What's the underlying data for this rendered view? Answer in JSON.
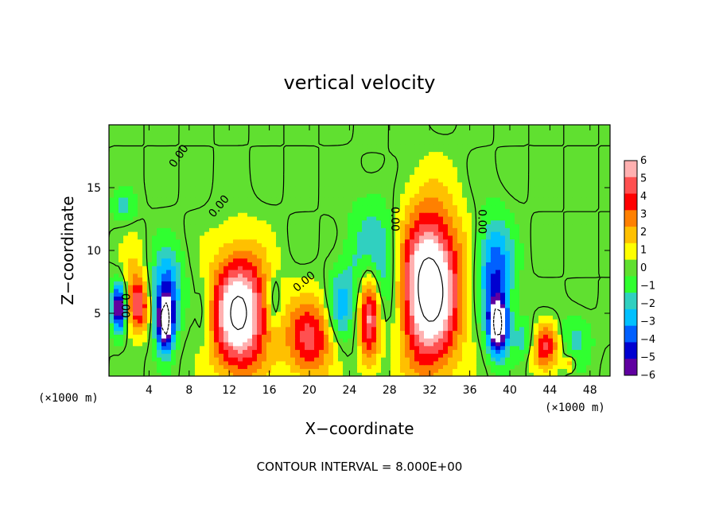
{
  "chart_data": {
    "type": "heatmap",
    "title": "vertical velocity",
    "xlabel": "X−coordinate",
    "ylabel": "Z−coordinate",
    "x_unit_label_left": "(×1000 m)",
    "x_unit_label_right": "(×1000 m)",
    "xlim": [
      0,
      50
    ],
    "ylim": [
      0,
      20
    ],
    "x_ticks": [
      4,
      8,
      12,
      16,
      20,
      24,
      28,
      32,
      36,
      40,
      44,
      48
    ],
    "x_tick_labels": [
      "4",
      "8",
      "12",
      "16",
      "20",
      "24",
      "28",
      "32",
      "36",
      "40",
      "44",
      "48"
    ],
    "y_ticks": [
      5,
      10,
      15
    ],
    "y_tick_labels": [
      "5",
      "10",
      "15"
    ],
    "colorbar": {
      "levels": [
        6,
        5,
        4,
        3,
        2,
        1,
        0,
        -1,
        -2,
        -3,
        -4,
        -5,
        -6
      ],
      "labels": [
        "6",
        "5",
        "4",
        "3",
        "2",
        "1",
        "0",
        "−1",
        "−2",
        "−3",
        "−4",
        "−5",
        "−6"
      ],
      "colors": [
        "#ffb0b0",
        "#ff5050",
        "#ff0000",
        "#ff8000",
        "#ffc000",
        "#ffff00",
        "#60e030",
        "#30ff30",
        "#30d0c0",
        "#00c0ff",
        "#0060ff",
        "#0000d0",
        "#6000a0"
      ]
    },
    "zero_contour_label": "0.00",
    "contour_labels": [
      {
        "text": "0.00",
        "x": 7.0,
        "z": 17.5,
        "rotate": -55
      },
      {
        "text": "0.00",
        "x": 11.0,
        "z": 13.5,
        "rotate": -50
      },
      {
        "text": "0.00",
        "x": 1.6,
        "z": 5.6,
        "rotate": 90
      },
      {
        "text": "0.00",
        "x": 19.5,
        "z": 7.5,
        "rotate": -40
      },
      {
        "text": "0.00",
        "x": 28.5,
        "z": 12.5,
        "rotate": 90
      },
      {
        "text": "0.00",
        "x": 37.2,
        "z": 12.3,
        "rotate": 90
      }
    ],
    "cells": [
      {
        "x": 13.0,
        "z": 5.0,
        "rx": 3.6,
        "rz": 6.0,
        "w": 8.5
      },
      {
        "x": 32.0,
        "z": 7.0,
        "rx": 3.8,
        "rz": 7.8,
        "w": 9.5
      },
      {
        "x": 26.0,
        "z": 5.0,
        "rx": 1.4,
        "rz": 5.0,
        "w": 8.0
      },
      {
        "x": 20.0,
        "z": 3.0,
        "rx": 3.0,
        "rz": 4.0,
        "w": 5.0
      },
      {
        "x": 43.5,
        "z": 2.5,
        "rx": 1.8,
        "rz": 2.3,
        "w": 5.0
      },
      {
        "x": 3.0,
        "z": 5.5,
        "rx": 1.2,
        "rz": 2.5,
        "w": 5.0
      },
      {
        "x": 2.5,
        "z": 7.5,
        "rx": 1.5,
        "rz": 4.0,
        "w": 2.0
      },
      {
        "x": 5.6,
        "z": 4.2,
        "rx": 1.0,
        "rz": 2.8,
        "w": -8.5
      },
      {
        "x": 5.8,
        "z": 7.0,
        "rx": 2.0,
        "rz": 4.0,
        "w": -4.0
      },
      {
        "x": 1.0,
        "z": 5.5,
        "rx": 0.8,
        "rz": 2.4,
        "w": -8.0
      },
      {
        "x": 38.8,
        "z": 4.0,
        "rx": 1.2,
        "rz": 3.0,
        "w": -8.5
      },
      {
        "x": 38.5,
        "z": 8.5,
        "rx": 2.2,
        "rz": 5.0,
        "w": -4.5
      },
      {
        "x": 26.5,
        "z": 8.0,
        "rx": 3.0,
        "rz": 6.5,
        "w": -4.0
      },
      {
        "x": 23.0,
        "z": 5.5,
        "rx": 1.5,
        "rz": 3.5,
        "w": -3.0
      },
      {
        "x": 41.5,
        "z": 3.0,
        "rx": 1.5,
        "rz": 2.0,
        "w": -2.5
      },
      {
        "x": 46.5,
        "z": 3.0,
        "rx": 2.0,
        "rz": 2.5,
        "w": -2.0
      },
      {
        "x": 16.5,
        "z": 6.0,
        "rx": 0.8,
        "rz": 2.5,
        "w": -2.5
      },
      {
        "x": 9.5,
        "z": 5.0,
        "rx": 1.0,
        "rz": 4.0,
        "w": -1.5
      },
      {
        "x": 1.5,
        "z": 13.5,
        "rx": 1.5,
        "rz": 1.5,
        "w": -2.0
      },
      {
        "x": 46.0,
        "z": 1.0,
        "rx": 0.6,
        "rz": 0.7,
        "w": 3.0
      }
    ]
  },
  "footer": {
    "contour_interval": "CONTOUR INTERVAL = 8.000E+00"
  }
}
